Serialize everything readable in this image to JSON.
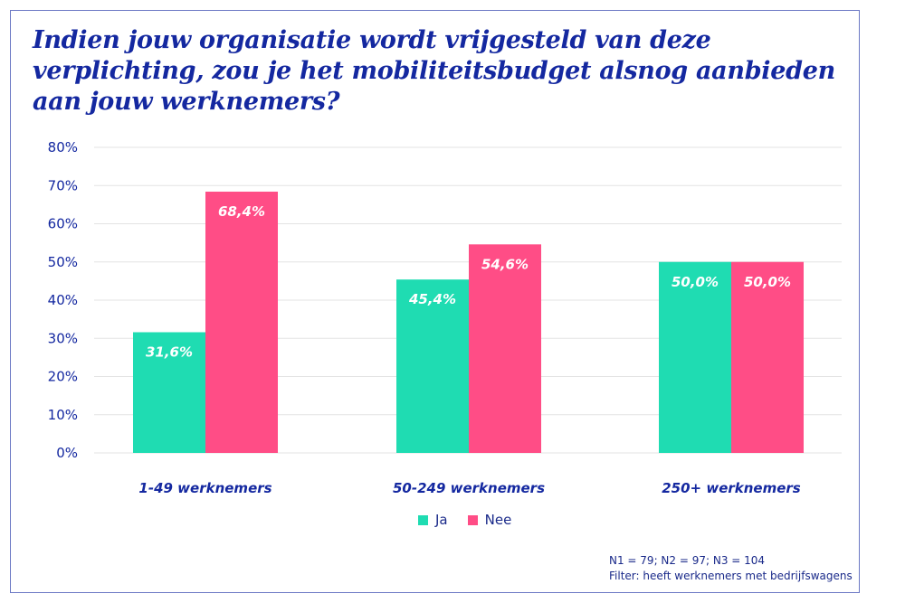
{
  "title": "Indien jouw organisatie wordt vrijgesteld van deze verplichting, zou je het mobiliteitsbudget alsnog aanbieden aan jouw werknemers?",
  "colors": {
    "ja": "#1fdcb2",
    "nee": "#ff4d86",
    "text": "#1428a0",
    "grid": "#e3e3e3"
  },
  "chart_data": {
    "type": "bar",
    "title": "Indien jouw organisatie wordt vrijgesteld van deze verplichting, zou je het mobiliteitsbudget alsnog aanbieden aan jouw werknemers?",
    "categories": [
      "1-49 werknemers",
      "50-249 werknemers",
      "250+ werknemers"
    ],
    "series": [
      {
        "name": "Ja",
        "values": [
          31.6,
          45.4,
          50.0
        ],
        "labels": [
          "31,6%",
          "45,4%",
          "50,0%"
        ]
      },
      {
        "name": "Nee",
        "values": [
          68.4,
          54.6,
          50.0
        ],
        "labels": [
          "68,4%",
          "54,6%",
          "50,0%"
        ]
      }
    ],
    "yticks": [
      "0%",
      "10%",
      "20%",
      "30%",
      "40%",
      "50%",
      "60%",
      "70%",
      "80%"
    ],
    "ylim": [
      0,
      80
    ],
    "grid": true,
    "legend": "bottom-center"
  },
  "legend": [
    "Ja",
    "Nee"
  ],
  "notes": [
    "N1 = 79; N2 = 97; N3 = 104",
    "Filter: heeft werknemers met bedrijfswagens"
  ]
}
